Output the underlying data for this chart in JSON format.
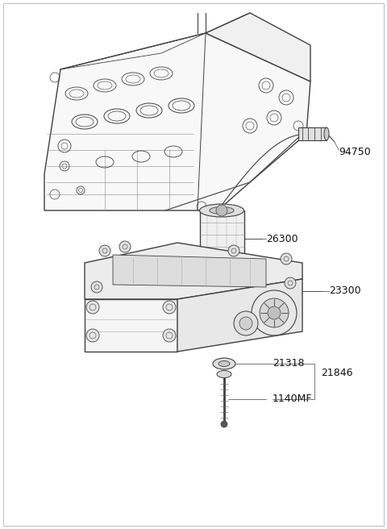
{
  "background_color": "#ffffff",
  "line_color": "#404040",
  "label_color": "#111111",
  "label_fontsize": 9,
  "figsize": [
    4.8,
    6.56
  ],
  "dpi": 100,
  "border_color": "#bbbbbb"
}
